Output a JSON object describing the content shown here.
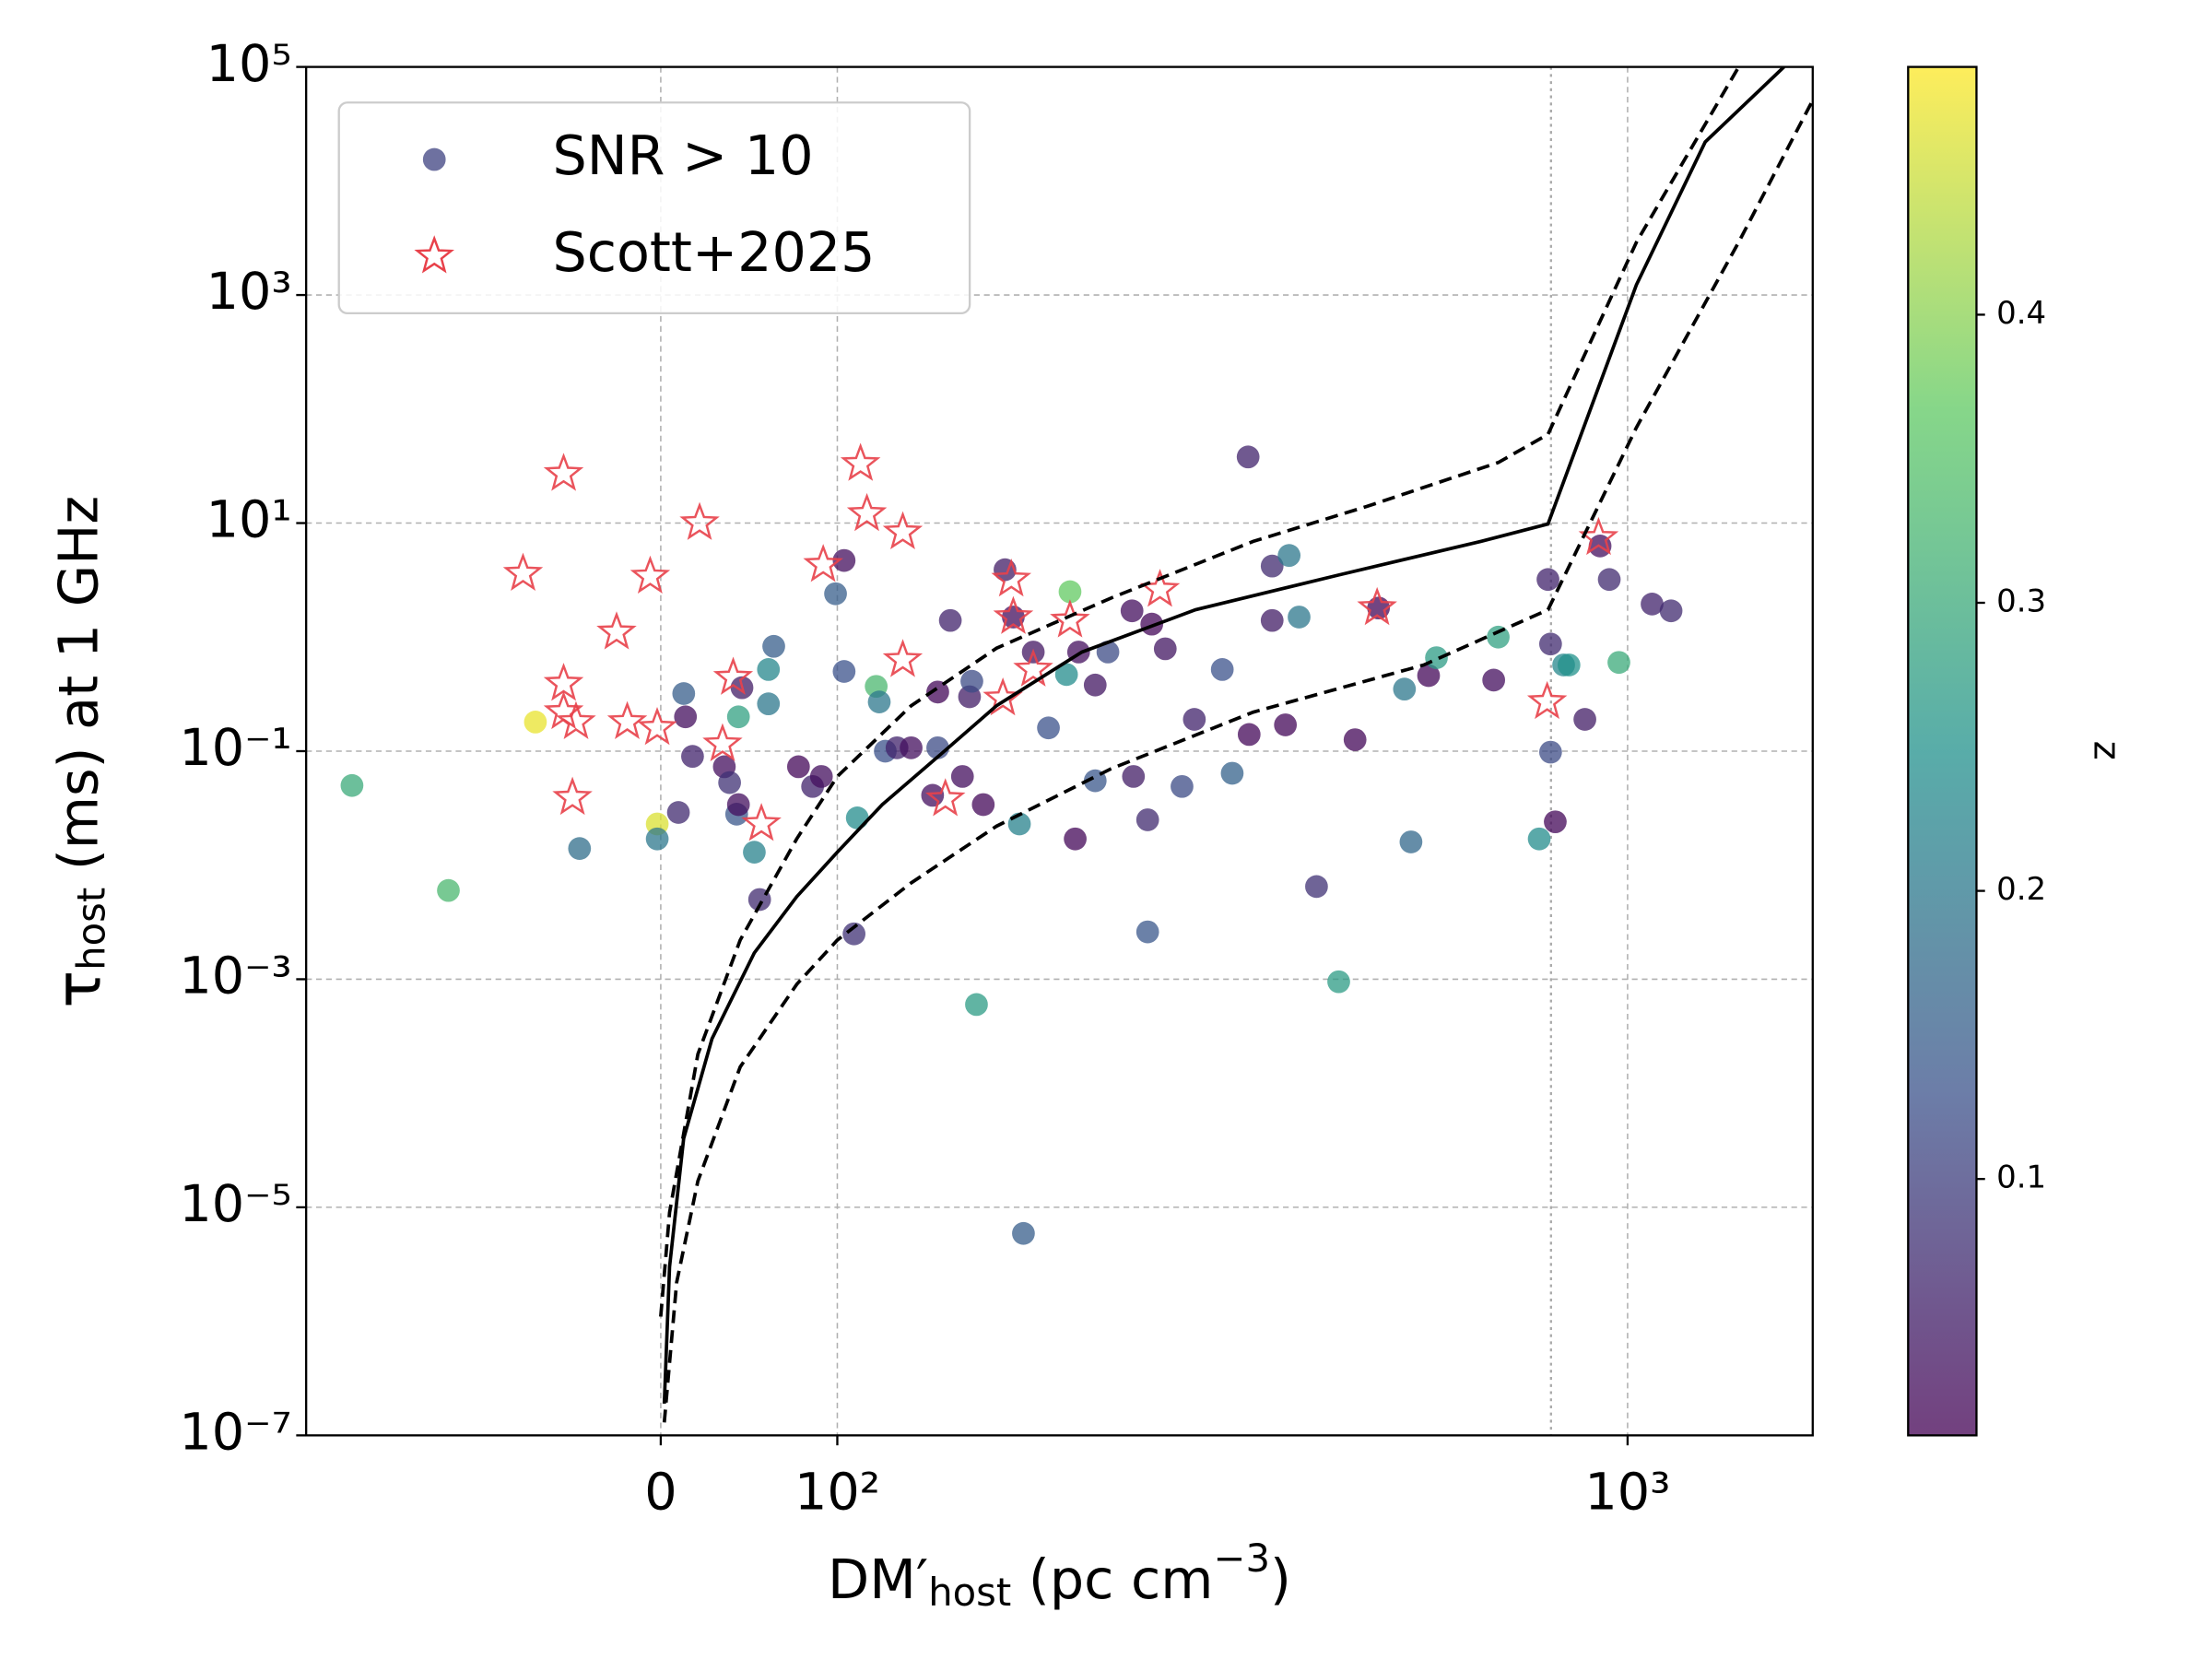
{
  "chart_data": {
    "type": "scatter",
    "xlabel": [
      "DM′",
      "host",
      " (pc cm",
      "−3",
      ")"
    ],
    "ylabel": [
      "τ",
      "host",
      " (ms) at 1 GHz"
    ],
    "xscale": "symlog",
    "xlinthresh": 100,
    "yscale": "log",
    "xlim": [
      -168,
      1715
    ],
    "ylim": [
      1e-07,
      100000
    ],
    "xticks": [
      0,
      {
        "value": 100,
        "label": "10²"
      },
      {
        "value": 1000,
        "label": "10³"
      }
    ],
    "yticks": [
      {
        "value": 1e-07,
        "label": "10⁻⁷"
      },
      {
        "value": 1e-05,
        "label": "10⁻⁵"
      },
      {
        "value": 0.001,
        "label": "10⁻³"
      },
      {
        "value": 0.1,
        "label": "10⁻¹"
      },
      {
        "value": 10,
        "label": "10¹"
      },
      {
        "value": 1000,
        "label": "10³"
      },
      {
        "value": 100000,
        "label": "10⁵"
      }
    ],
    "grid": true,
    "legend": "upper left",
    "colormap": "viridis",
    "colorbar": {
      "label": "z",
      "lim": [
        0.011,
        0.486
      ],
      "ticks": [
        0.1,
        0.2,
        0.3,
        0.4
      ]
    },
    "vline": {
      "x": 800,
      "style": "dotted"
    },
    "series": [
      {
        "name": "SNR > 10",
        "marker": "circle",
        "x": [
          -147,
          -111,
          -71,
          -46,
          -2,
          -2,
          10,
          13,
          14,
          18,
          36,
          39,
          43,
          44,
          44,
          46,
          53,
          56,
          61,
          61,
          64,
          78,
          86,
          91,
          99,
          102,
          102,
          105,
          106,
          112,
          113,
          115,
          119,
          124,
          132,
          134,
          134,
          139,
          144,
          147,
          148,
          150,
          153,
          163,
          167,
          170,
          172,
          177,
          185,
          195,
          197,
          200,
          202,
          212,
          212,
          220,
          236,
          237,
          247,
          247,
          250,
          260,
          273,
          283,
          307,
          316,
          331,
          332,
          355,
          355,
          369,
          373,
          384,
          404,
          431,
          452,
          484,
          522,
          532,
          560,
          573,
          677,
          686,
          773,
          793,
          799,
          799,
          810,
          830,
          843,
          883,
          923,
          948,
          975,
          1074,
          1135
        ],
        "values": [
          0.05,
          0.006,
          0.18,
          0.014,
          0.023,
          0.017,
          0.029,
          0.32,
          0.2,
          0.09,
          0.073,
          0.053,
          0.028,
          0.034,
          0.2,
          0.36,
          0.013,
          0.005,
          0.52,
          0.26,
          0.83,
          0.073,
          0.049,
          0.06,
          2.4,
          4.7,
          0.5,
          0.0025,
          0.026,
          0.37,
          0.27,
          0.1,
          0.107,
          0.107,
          0.041,
          0.107,
          0.33,
          1.4,
          0.06,
          0.3,
          0.41,
          0.0006,
          0.034,
          3.9,
          1.5,
          0.023,
          5.9e-06,
          0.74,
          0.16,
          0.47,
          2.5,
          0.017,
          0.74,
          0.38,
          0.055,
          0.74,
          1.7,
          0.06,
          0.025,
          0.0026,
          1.3,
          0.79,
          0.049,
          0.19,
          0.52,
          0.064,
          38,
          0.14,
          4.2,
          1.4,
          0.17,
          5.2,
          1.5,
          0.0065,
          0.00095,
          0.126,
          1.8,
          0.35,
          0.016,
          0.46,
          0.66,
          0.42,
          1.0,
          0.017,
          3.2,
          0.87,
          0.098,
          0.024,
          0.57,
          0.57,
          0.19,
          6.3,
          3.2,
          0.6,
          1.95,
          1.7
        ],
        "c": [
          0.3,
          0.33,
          0.47,
          0.18,
          0.46,
          0.2,
          0.07,
          0.15,
          0.03,
          0.06,
          0.03,
          0.08,
          0.14,
          0.03,
          0.28,
          0.05,
          0.22,
          0.07,
          0.23,
          0.2,
          0.15,
          0.02,
          0.06,
          0.03,
          0.15,
          0.03,
          0.13,
          0.08,
          0.24,
          0.33,
          0.2,
          0.13,
          0.06,
          0.03,
          0.03,
          0.12,
          0.02,
          0.06,
          0.03,
          0.05,
          0.12,
          0.27,
          0.02,
          0.05,
          0.03,
          0.22,
          0.15,
          0.04,
          0.13,
          0.24,
          0.37,
          0.02,
          0.03,
          0.04,
          0.14,
          0.12,
          0.03,
          0.05,
          0.07,
          0.14,
          0.02,
          0.04,
          0.12,
          0.06,
          0.13,
          0.16,
          0.06,
          0.02,
          0.07,
          0.05,
          0.02,
          0.2,
          0.2,
          0.08,
          0.27,
          0.02,
          0.02,
          0.2,
          0.17,
          0.02,
          0.27,
          0.03,
          0.28,
          0.24,
          0.06,
          0.07,
          0.12,
          0.02,
          0.23,
          0.25,
          0.05,
          0.03,
          0.07,
          0.3,
          0.06,
          0.07
        ]
      },
      {
        "name": "Scott+2025",
        "marker": "star",
        "color": "#e8414a",
        "x": [
          -78,
          -55,
          -55,
          -55,
          -48,
          -50,
          -25,
          -19,
          -6,
          -2,
          22,
          35,
          41,
          57,
          92,
          107,
          109,
          121,
          121,
          137,
          162,
          166,
          167,
          177,
          197,
          256,
          482,
          791,
          919
        ],
        "values": [
          3.6,
          27,
          0.39,
          0.22,
          0.18,
          0.039,
          1.1,
          0.18,
          3.4,
          0.16,
          10,
          0.115,
          0.44,
          0.023,
          4.3,
          33,
          12,
          8.3,
          0.63,
          0.038,
          0.29,
          3.2,
          1.5,
          0.52,
          1.4,
          2.6,
          1.8,
          0.27,
          7.4
        ]
      }
    ],
    "lines": [
      {
        "style": "solid",
        "color": "#000000",
        "x": [
          2,
          5,
          13,
          29,
          53,
          77,
          100,
          114,
          135,
          159,
          204,
          284,
          431,
          652,
          793,
          1026,
          1254,
          1577
        ],
        "values": [
          1.9e-07,
          3e-06,
          4e-05,
          0.0003,
          0.0017,
          0.0053,
          0.013,
          0.034,
          0.093,
          0.25,
          0.74,
          1.74,
          3.5,
          6.9,
          9.8,
          1230,
          22000,
          100000
        ]
      },
      {
        "style": "dashed",
        "color": "#000000",
        "x": [
          0,
          5,
          21,
          45,
          77,
          100,
          124,
          159,
          222,
          336,
          468,
          686,
          793,
          1026,
          1382
        ],
        "values": [
          1.1e-06,
          9e-06,
          0.00022,
          0.0022,
          0.017,
          0.06,
          0.25,
          0.8,
          2.2,
          6.9,
          14,
          34,
          60,
          2900,
          100000
        ]
      },
      {
        "style": "dashed",
        "color": "#000000",
        "x": [
          2,
          9,
          21,
          45,
          77,
          100,
          124,
          159,
          222,
          336,
          552,
          793,
          1026,
          1382,
          1715
        ],
        "values": [
          1.3e-07,
          2.2e-06,
          1.7e-05,
          0.00017,
          0.0009,
          0.0022,
          0.007,
          0.022,
          0.07,
          0.22,
          0.57,
          1.74,
          69,
          2900,
          51000
        ]
      }
    ]
  }
}
